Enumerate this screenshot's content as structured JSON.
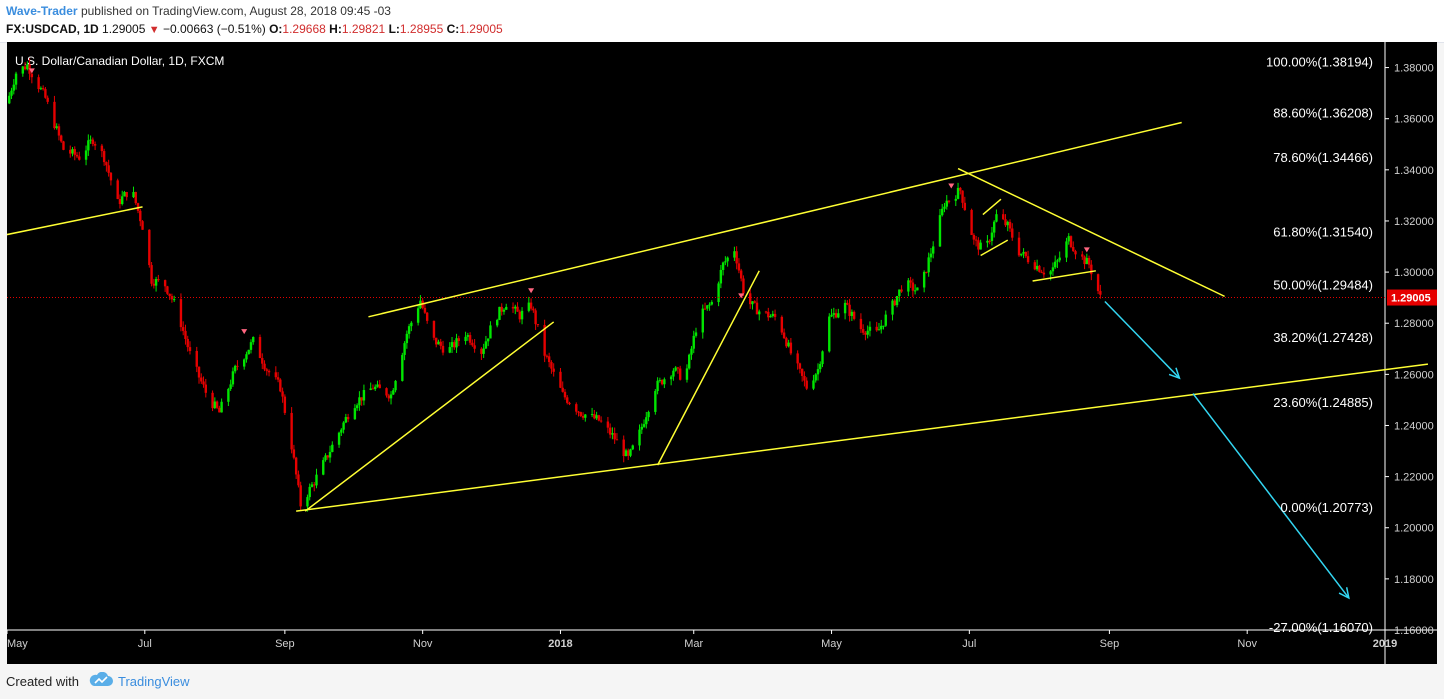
{
  "header": {
    "author": "Wave-Trader",
    "published_text": "published on TradingView.com, August 28, 2018 09:45 -03",
    "symbol": "FX:USDCAD, 1D",
    "last": "1.29005",
    "change": "−0.00663 (−0.51%)",
    "o_label": "O:",
    "o_value": "1.29668",
    "h_label": "H:",
    "h_value": "1.29821",
    "l_label": "L:",
    "l_value": "1.28955",
    "c_label": "C:",
    "c_value": "1.29005"
  },
  "footer": {
    "created_with": "Created with",
    "brand": "TradingView"
  },
  "colors": {
    "background": "#000000",
    "up_candle": "#00e600",
    "down_candle": "#e60000",
    "trendline": "#ffff33",
    "projection_arrow": "#33d6f2",
    "price_label_bg": "#e60000",
    "axis_text": "#d0d0d0"
  },
  "chart_data": {
    "type": "candlestick",
    "title": "U.S. Dollar/Canadian Dollar, 1D, FXCM",
    "x_labels": [
      "May",
      "Jul",
      "Sep",
      "Nov",
      "2018",
      "Mar",
      "May",
      "Jul",
      "Sep",
      "Nov",
      "2019"
    ],
    "x_range": [
      "2017-05-01",
      "2019-01-01"
    ],
    "y_range": [
      1.16,
      1.39
    ],
    "y_ticks": [
      "1.38000",
      "1.36000",
      "1.34000",
      "1.32000",
      "1.30000",
      "1.28000",
      "1.26000",
      "1.24000",
      "1.22000",
      "1.20000",
      "1.18000",
      "1.16000"
    ],
    "current_price": "1.29005",
    "fibonacci_levels": [
      {
        "label": "100.00%(1.38194)",
        "price": 1.38194
      },
      {
        "label": "88.60%(1.36208)",
        "price": 1.36208
      },
      {
        "label": "78.60%(1.34466)",
        "price": 1.34466
      },
      {
        "label": "61.80%(1.31540)",
        "price": 1.3154
      },
      {
        "label": "50.00%(1.29484)",
        "price": 1.29484
      },
      {
        "label": "38.20%(1.27428)",
        "price": 1.27428
      },
      {
        "label": "23.60%(1.24885)",
        "price": 1.24885
      },
      {
        "label": "0.00%(1.20773)",
        "price": 1.20773
      },
      {
        "label": "-27.00%(1.16070)",
        "price": 1.1607
      }
    ],
    "price_path": [
      {
        "date": "2017-05-01",
        "price": 1.366
      },
      {
        "date": "2017-05-05",
        "price": 1.378
      },
      {
        "date": "2017-05-10",
        "price": 1.381
      },
      {
        "date": "2017-05-18",
        "price": 1.368
      },
      {
        "date": "2017-05-26",
        "price": 1.348
      },
      {
        "date": "2017-06-02",
        "price": 1.345
      },
      {
        "date": "2017-06-08",
        "price": 1.352
      },
      {
        "date": "2017-06-13",
        "price": 1.345
      },
      {
        "date": "2017-06-19",
        "price": 1.327
      },
      {
        "date": "2017-06-25",
        "price": 1.333
      },
      {
        "date": "2017-06-30",
        "price": 1.318
      },
      {
        "date": "2017-07-04",
        "price": 1.297
      },
      {
        "date": "2017-07-10",
        "price": 1.295
      },
      {
        "date": "2017-07-15",
        "price": 1.286
      },
      {
        "date": "2017-07-22",
        "price": 1.265
      },
      {
        "date": "2017-07-29",
        "price": 1.251
      },
      {
        "date": "2017-08-03",
        "price": 1.245
      },
      {
        "date": "2017-08-10",
        "price": 1.262
      },
      {
        "date": "2017-08-18",
        "price": 1.273
      },
      {
        "date": "2017-08-24",
        "price": 1.262
      },
      {
        "date": "2017-08-30",
        "price": 1.255
      },
      {
        "date": "2017-09-04",
        "price": 1.232
      },
      {
        "date": "2017-09-08",
        "price": 1.209
      },
      {
        "date": "2017-09-14",
        "price": 1.218
      },
      {
        "date": "2017-09-22",
        "price": 1.232
      },
      {
        "date": "2017-10-01",
        "price": 1.248
      },
      {
        "date": "2017-10-10",
        "price": 1.255
      },
      {
        "date": "2017-10-18",
        "price": 1.252
      },
      {
        "date": "2017-10-25",
        "price": 1.276
      },
      {
        "date": "2017-10-31",
        "price": 1.289
      },
      {
        "date": "2017-11-05",
        "price": 1.274
      },
      {
        "date": "2017-11-12",
        "price": 1.269
      },
      {
        "date": "2017-11-20",
        "price": 1.276
      },
      {
        "date": "2017-11-27",
        "price": 1.269
      },
      {
        "date": "2017-12-03",
        "price": 1.282
      },
      {
        "date": "2017-12-08",
        "price": 1.288
      },
      {
        "date": "2017-12-14",
        "price": 1.283
      },
      {
        "date": "2017-12-19",
        "price": 1.287
      },
      {
        "date": "2017-12-25",
        "price": 1.268
      },
      {
        "date": "2018-01-02",
        "price": 1.252
      },
      {
        "date": "2018-01-10",
        "price": 1.245
      },
      {
        "date": "2018-01-18",
        "price": 1.242
      },
      {
        "date": "2018-01-25",
        "price": 1.235
      },
      {
        "date": "2018-01-31",
        "price": 1.227
      },
      {
        "date": "2018-02-05",
        "price": 1.237
      },
      {
        "date": "2018-02-12",
        "price": 1.255
      },
      {
        "date": "2018-02-20",
        "price": 1.262
      },
      {
        "date": "2018-02-25",
        "price": 1.258
      },
      {
        "date": "2018-03-03",
        "price": 1.282
      },
      {
        "date": "2018-03-09",
        "price": 1.288
      },
      {
        "date": "2018-03-14",
        "price": 1.303
      },
      {
        "date": "2018-03-19",
        "price": 1.309
      },
      {
        "date": "2018-03-24",
        "price": 1.289
      },
      {
        "date": "2018-03-31",
        "price": 1.284
      },
      {
        "date": "2018-04-07",
        "price": 1.282
      },
      {
        "date": "2018-04-14",
        "price": 1.266
      },
      {
        "date": "2018-04-20",
        "price": 1.255
      },
      {
        "date": "2018-04-25",
        "price": 1.262
      },
      {
        "date": "2018-04-30",
        "price": 1.282
      },
      {
        "date": "2018-05-07",
        "price": 1.287
      },
      {
        "date": "2018-05-14",
        "price": 1.278
      },
      {
        "date": "2018-05-21",
        "price": 1.276
      },
      {
        "date": "2018-05-28",
        "price": 1.287
      },
      {
        "date": "2018-06-02",
        "price": 1.296
      },
      {
        "date": "2018-06-09",
        "price": 1.292
      },
      {
        "date": "2018-06-15",
        "price": 1.311
      },
      {
        "date": "2018-06-20",
        "price": 1.327
      },
      {
        "date": "2018-06-27",
        "price": 1.332
      },
      {
        "date": "2018-07-03",
        "price": 1.312
      },
      {
        "date": "2018-07-08",
        "price": 1.308
      },
      {
        "date": "2018-07-13",
        "price": 1.322
      },
      {
        "date": "2018-07-18",
        "price": 1.318
      },
      {
        "date": "2018-07-23",
        "price": 1.308
      },
      {
        "date": "2018-07-30",
        "price": 1.303
      },
      {
        "date": "2018-08-05",
        "price": 1.299
      },
      {
        "date": "2018-08-09",
        "price": 1.304
      },
      {
        "date": "2018-08-14",
        "price": 1.313
      },
      {
        "date": "2018-08-18",
        "price": 1.307
      },
      {
        "date": "2018-08-23",
        "price": 1.303
      },
      {
        "date": "2018-08-28",
        "price": 1.29005
      }
    ],
    "trendlines": [
      {
        "from": {
          "date": "2017-04-30",
          "price": 1.3145
        },
        "to": {
          "date": "2017-06-30",
          "price": 1.3255
        }
      },
      {
        "from": {
          "date": "2017-09-06",
          "price": 1.2065
        },
        "to": {
          "date": "2019-01-20",
          "price": 1.264
        }
      },
      {
        "from": {
          "date": "2017-10-08",
          "price": 1.2825
        },
        "to": {
          "date": "2018-10-03",
          "price": 1.3585
        }
      },
      {
        "from": {
          "date": "2017-09-10",
          "price": 1.2065
        },
        "to": {
          "date": "2017-12-29",
          "price": 1.2805
        }
      },
      {
        "from": {
          "date": "2018-02-13",
          "price": 1.2245
        },
        "to": {
          "date": "2018-03-30",
          "price": 1.3005
        }
      },
      {
        "from": {
          "date": "2018-06-26",
          "price": 1.3405
        },
        "to": {
          "date": "2018-10-22",
          "price": 1.2905
        }
      },
      {
        "from": {
          "date": "2018-07-07",
          "price": 1.3225
        },
        "to": {
          "date": "2018-07-15",
          "price": 1.3285
        }
      },
      {
        "from": {
          "date": "2018-07-06",
          "price": 1.3065
        },
        "to": {
          "date": "2018-07-18",
          "price": 1.3125
        }
      },
      {
        "from": {
          "date": "2018-07-29",
          "price": 1.2965
        },
        "to": {
          "date": "2018-08-26",
          "price": 1.3005
        }
      }
    ],
    "arrows": [
      {
        "from": {
          "date": "2018-08-30",
          "price": 1.2885
        },
        "to": {
          "date": "2018-10-02",
          "price": 1.2585
        }
      },
      {
        "from": {
          "date": "2018-10-08",
          "price": 1.2525
        },
        "to": {
          "date": "2018-12-16",
          "price": 1.1725
        }
      }
    ],
    "markers": [
      {
        "date": "2017-05-12",
        "price": 1.3785
      },
      {
        "date": "2017-08-14",
        "price": 1.2765
      },
      {
        "date": "2017-12-19",
        "price": 1.2925
      },
      {
        "date": "2018-03-22",
        "price": 1.2905
      },
      {
        "date": "2018-06-23",
        "price": 1.3335
      },
      {
        "date": "2018-08-22",
        "price": 1.3085
      }
    ]
  }
}
